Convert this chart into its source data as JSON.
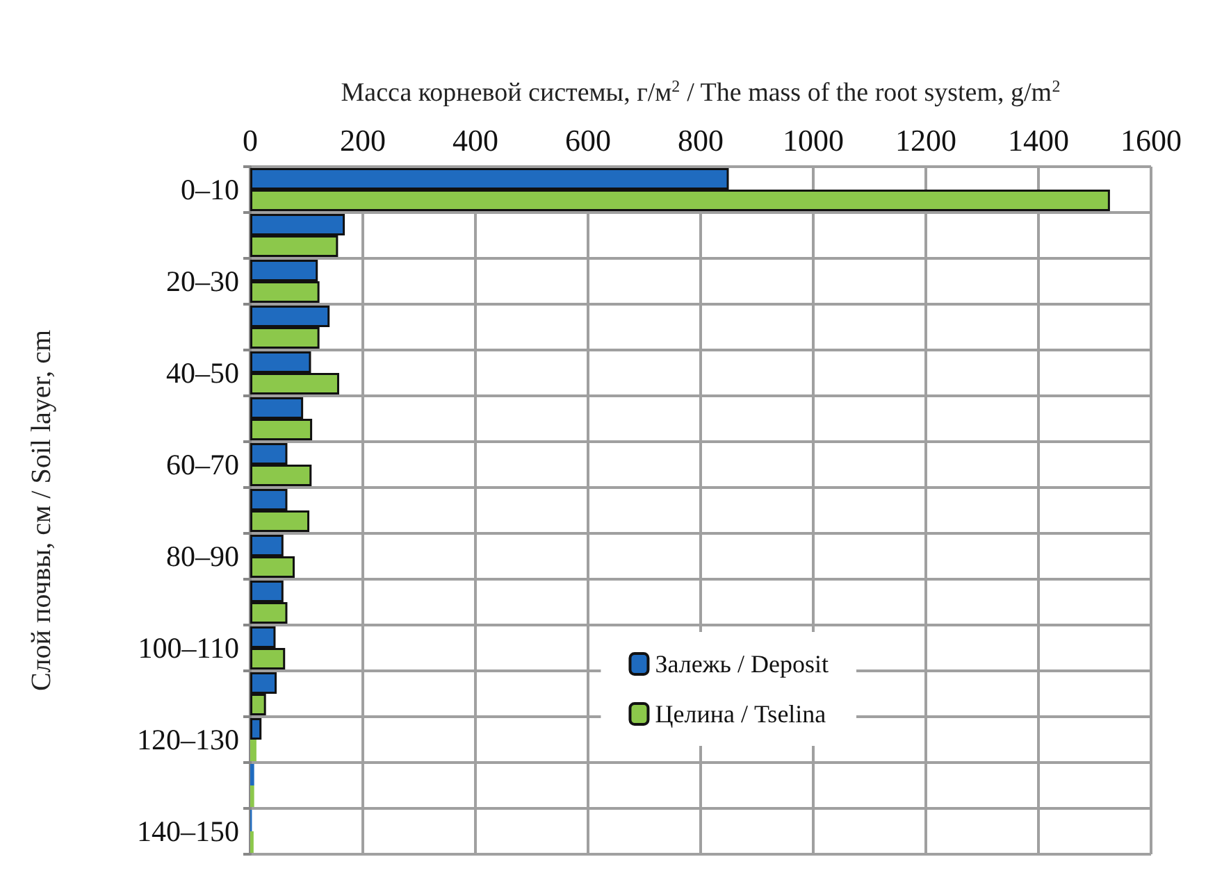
{
  "chart_data": {
    "type": "bar",
    "orientation": "horizontal",
    "xlabel": "Масса корневой системы, г/м$^{2}$ / The mass of the root system, g/m$^{2}$",
    "ylabel": "Слой почвы, см / Soil layer, cm",
    "categories": [
      "0–10",
      null,
      "20–30",
      null,
      "40–50",
      null,
      "60–70",
      null,
      "80–90",
      null,
      "100–110",
      null,
      "120–130",
      null,
      "140–150"
    ],
    "series": [
      {
        "name": "Залежь / Deposit",
        "color": "#1f6bbf",
        "values": [
          850,
          168,
          120,
          141,
          108,
          94,
          66,
          66,
          59,
          59,
          45,
          47,
          20,
          7,
          3
        ]
      },
      {
        "name": "Целина / Tselina",
        "color": "#8cc84b",
        "values": [
          1527,
          156,
          123,
          123,
          158,
          110,
          109,
          105,
          79,
          66,
          62,
          28,
          11,
          7,
          6
        ]
      }
    ],
    "xlim": [
      0,
      1600
    ],
    "xticks": [
      0,
      200,
      400,
      600,
      800,
      1000,
      1200,
      1400,
      1600
    ],
    "grid": true,
    "legend": "bottom right"
  }
}
